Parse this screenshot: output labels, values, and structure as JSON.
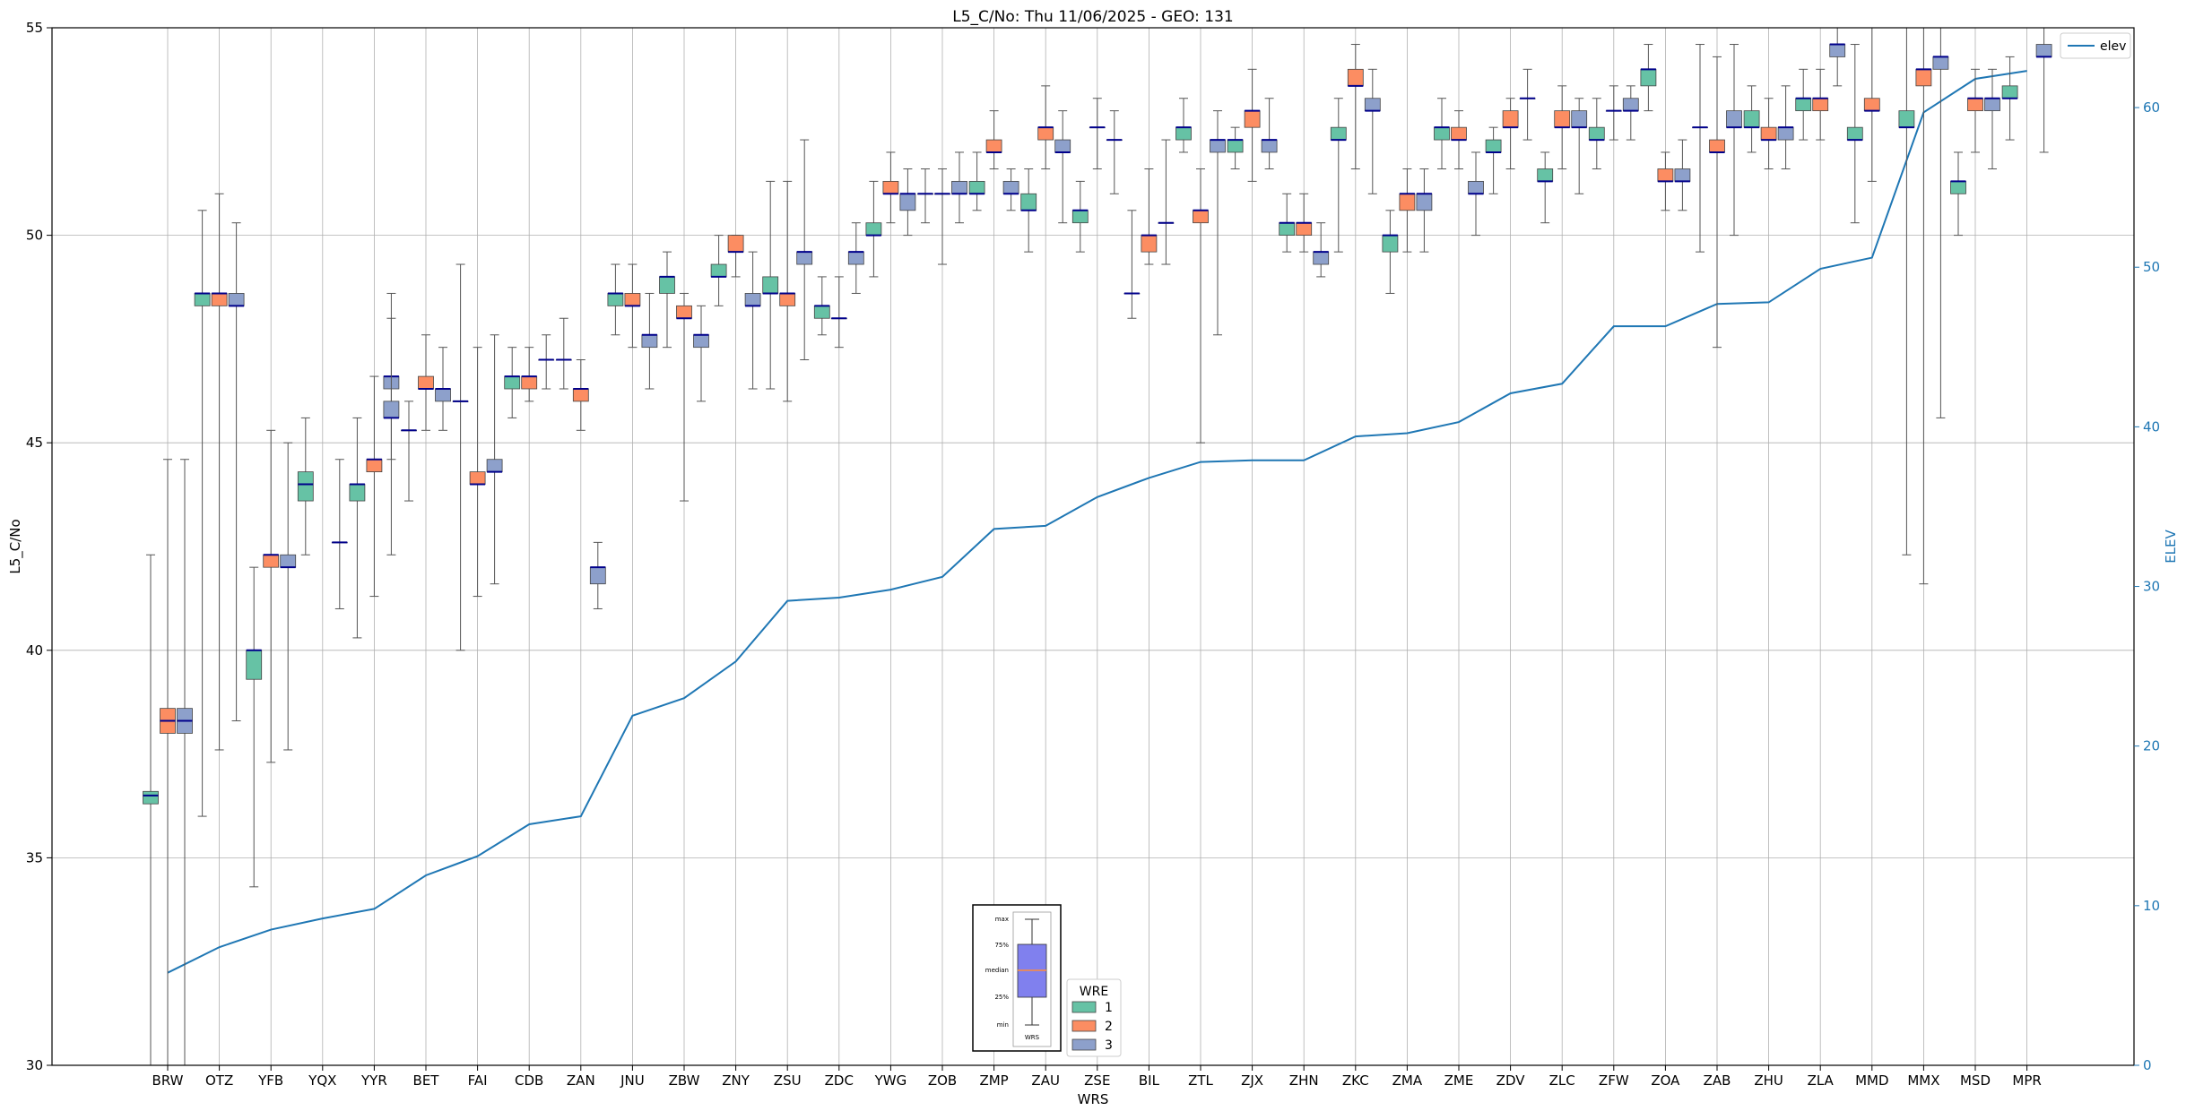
{
  "chart_data": {
    "type": "box",
    "title": "L5_C/No: Thu 11/06/2025 - GEO: 131",
    "xlabel": "WRS",
    "ylabel": "L5_C/No",
    "ylabel_right": "ELEV",
    "ylim": [
      30,
      55
    ],
    "ylim_right": [
      0,
      65
    ],
    "yticks": [
      30,
      35,
      40,
      45,
      50,
      55
    ],
    "yticks_right": [
      0,
      10,
      20,
      30,
      40,
      50,
      60
    ],
    "grid": true,
    "categories": [
      "BRW",
      "OTZ",
      "YFB",
      "YQX",
      "YYR",
      "BET",
      "FAI",
      "CDB",
      "ZAN",
      "JNU",
      "ZBW",
      "ZNY",
      "ZSU",
      "ZDC",
      "YWG",
      "ZOB",
      "ZMP",
      "ZAU",
      "ZSE",
      "BIL",
      "ZTL",
      "ZJX",
      "ZHN",
      "ZKC",
      "ZMA",
      "ZME",
      "ZDV",
      "ZLC",
      "ZFW",
      "ZOA",
      "ZAB",
      "ZHU",
      "ZLA",
      "MMD",
      "MMX",
      "MSD",
      "MPR"
    ],
    "legend": {
      "title": "WRE",
      "entries": [
        "1",
        "2",
        "3"
      ],
      "colors": [
        "#66c2a5",
        "#fc8d62",
        "#8da0cb"
      ],
      "placement": "bottom-center"
    },
    "line_legend": {
      "label": "elev",
      "color": "#1f77b4",
      "placement": "top-right"
    },
    "key_labels": {
      "max": "max",
      "q75": "75%",
      "median": "median",
      "q25": "25%",
      "min": "min",
      "name": "WRS"
    },
    "elev": {
      "name": "elev",
      "values": [
        5.8,
        7.4,
        8.5,
        9.2,
        9.8,
        11.9,
        13.1,
        15.1,
        15.6,
        21.9,
        23.0,
        25.3,
        29.1,
        29.3,
        29.8,
        30.6,
        33.6,
        33.8,
        35.6,
        36.8,
        37.8,
        37.9,
        37.9,
        39.4,
        39.6,
        40.3,
        42.1,
        42.7,
        46.3,
        46.3,
        47.7,
        47.8,
        49.9,
        50.6,
        59.7,
        61.8,
        62.3
      ]
    },
    "boxes": [
      {
        "wrs": "BRW",
        "wre": 1,
        "min": 30,
        "q1": 36.3,
        "med": 36.5,
        "q3": 36.6,
        "max": 42.3
      },
      {
        "wrs": "BRW",
        "wre": 2,
        "min": 30,
        "q1": 38.0,
        "med": 38.3,
        "q3": 38.6,
        "max": 44.6
      },
      {
        "wrs": "BRW",
        "wre": 3,
        "min": 30,
        "q1": 38.0,
        "med": 38.3,
        "q3": 38.6,
        "max": 44.6
      },
      {
        "wrs": "OTZ",
        "wre": 1,
        "min": 36.0,
        "q1": 48.3,
        "med": 48.6,
        "q3": 48.6,
        "max": 50.6
      },
      {
        "wrs": "OTZ",
        "wre": 2,
        "min": 37.6,
        "q1": 48.3,
        "med": 48.6,
        "q3": 48.6,
        "max": 51.0
      },
      {
        "wrs": "OTZ",
        "wre": 3,
        "min": 38.3,
        "q1": 48.3,
        "med": 48.3,
        "q3": 48.6,
        "max": 50.3
      },
      {
        "wrs": "YFB",
        "wre": 1,
        "min": 34.3,
        "q1": 39.3,
        "med": 40.0,
        "q3": 40.0,
        "max": 42.0
      },
      {
        "wrs": "YFB",
        "wre": 2,
        "min": 37.3,
        "q1": 42.0,
        "med": 42.3,
        "q3": 42.3,
        "max": 45.3
      },
      {
        "wrs": "YFB",
        "wre": 3,
        "min": 37.6,
        "q1": 42.0,
        "med": 42.0,
        "q3": 42.3,
        "max": 45.0
      },
      {
        "wrs": "YQX",
        "wre": 1,
        "min": 42.3,
        "q1": 43.6,
        "med": 44.0,
        "q3": 44.3,
        "max": 45.6
      },
      {
        "wrs": "YQX",
        "wre": 2,
        "min": null,
        "q1": null,
        "med": null,
        "q3": null,
        "max": null
      },
      {
        "wrs": "YQX",
        "wre": 3,
        "min": 41.0,
        "q1": 42.6,
        "med": 42.6,
        "q3": 42.6,
        "max": 44.6
      },
      {
        "wrs": "YQX",
        "wre": 3,
        "slot": 4,
        "min": 44.6,
        "q1": 46.3,
        "med": 46.6,
        "q3": 46.6,
        "max": 48.6
      },
      {
        "wrs": "YYR",
        "wre": 1,
        "min": 40.3,
        "q1": 43.6,
        "med": 44.0,
        "q3": 44.0,
        "max": 45.6
      },
      {
        "wrs": "YYR",
        "wre": 2,
        "min": 41.3,
        "q1": 44.3,
        "med": 44.6,
        "q3": 44.6,
        "max": 46.6
      },
      {
        "wrs": "YYR",
        "wre": 3,
        "min": 42.3,
        "q1": 45.6,
        "med": 45.6,
        "q3": 46.0,
        "max": 48.0
      },
      {
        "wrs": "BET",
        "wre": 1,
        "min": 43.6,
        "q1": 45.3,
        "med": 45.3,
        "q3": 45.3,
        "max": 46.0
      },
      {
        "wrs": "BET",
        "wre": 2,
        "min": 45.3,
        "q1": 46.3,
        "med": 46.3,
        "q3": 46.6,
        "max": 47.6
      },
      {
        "wrs": "BET",
        "wre": 3,
        "min": 45.3,
        "q1": 46.0,
        "med": 46.3,
        "q3": 46.3,
        "max": 47.3
      },
      {
        "wrs": "FAI",
        "wre": 1,
        "min": 40.0,
        "q1": 46.0,
        "med": 46.0,
        "q3": 46.0,
        "max": 49.3
      },
      {
        "wrs": "FAI",
        "wre": 2,
        "min": 41.3,
        "q1": 44.0,
        "med": 44.0,
        "q3": 44.3,
        "max": 47.3
      },
      {
        "wrs": "FAI",
        "wre": 3,
        "min": 41.6,
        "q1": 44.3,
        "med": 44.3,
        "q3": 44.6,
        "max": 47.6
      },
      {
        "wrs": "CDB",
        "wre": 1,
        "min": 45.6,
        "q1": 46.3,
        "med": 46.6,
        "q3": 46.6,
        "max": 47.3
      },
      {
        "wrs": "CDB",
        "wre": 2,
        "min": 46.0,
        "q1": 46.3,
        "med": 46.6,
        "q3": 46.6,
        "max": 47.3
      },
      {
        "wrs": "CDB",
        "wre": 3,
        "min": 46.3,
        "q1": 47.0,
        "med": 47.0,
        "q3": 47.0,
        "max": 47.6
      },
      {
        "wrs": "ZAN",
        "wre": 1,
        "min": 46.3,
        "q1": 47.0,
        "med": 47.0,
        "q3": 47.0,
        "max": 48.0
      },
      {
        "wrs": "ZAN",
        "wre": 2,
        "min": 45.3,
        "q1": 46.0,
        "med": 46.3,
        "q3": 46.3,
        "max": 47.0
      },
      {
        "wrs": "ZAN",
        "wre": 3,
        "min": 41.0,
        "q1": 41.6,
        "med": 42.0,
        "q3": 42.0,
        "max": 42.6
      },
      {
        "wrs": "JNU",
        "wre": 1,
        "min": 47.6,
        "q1": 48.3,
        "med": 48.6,
        "q3": 48.6,
        "max": 49.3
      },
      {
        "wrs": "JNU",
        "wre": 2,
        "min": 47.3,
        "q1": 48.3,
        "med": 48.3,
        "q3": 48.6,
        "max": 49.3
      },
      {
        "wrs": "JNU",
        "wre": 3,
        "min": 46.3,
        "q1": 47.3,
        "med": 47.6,
        "q3": 47.6,
        "max": 48.6
      },
      {
        "wrs": "ZBW",
        "wre": 1,
        "min": 47.3,
        "q1": 48.6,
        "med": 49.0,
        "q3": 49.0,
        "max": 49.6
      },
      {
        "wrs": "ZBW",
        "wre": 2,
        "min": 43.6,
        "q1": 48.0,
        "med": 48.0,
        "q3": 48.3,
        "max": 48.6
      },
      {
        "wrs": "ZBW",
        "wre": 3,
        "min": 46.0,
        "q1": 47.3,
        "med": 47.6,
        "q3": 47.6,
        "max": 48.3
      },
      {
        "wrs": "ZNY",
        "wre": 1,
        "min": 48.3,
        "q1": 49.0,
        "med": 49.0,
        "q3": 49.3,
        "max": 50.0
      },
      {
        "wrs": "ZNY",
        "wre": 2,
        "min": 49.0,
        "q1": 49.6,
        "med": 49.6,
        "q3": 50.0,
        "max": 50.0
      },
      {
        "wrs": "ZNY",
        "wre": 3,
        "min": 46.3,
        "q1": 48.3,
        "med": 48.3,
        "q3": 48.6,
        "max": 49.6
      },
      {
        "wrs": "ZSU",
        "wre": 1,
        "min": 46.3,
        "q1": 48.6,
        "med": 48.6,
        "q3": 49.0,
        "max": 51.3
      },
      {
        "wrs": "ZSU",
        "wre": 2,
        "min": 46.0,
        "q1": 48.3,
        "med": 48.6,
        "q3": 48.6,
        "max": 51.3
      },
      {
        "wrs": "ZSU",
        "wre": 3,
        "min": 47.0,
        "q1": 49.3,
        "med": 49.6,
        "q3": 49.6,
        "max": 52.3
      },
      {
        "wrs": "ZDC",
        "wre": 1,
        "min": 47.6,
        "q1": 48.0,
        "med": 48.3,
        "q3": 48.3,
        "max": 49.0
      },
      {
        "wrs": "ZDC",
        "wre": 2,
        "min": 47.3,
        "q1": 48.0,
        "med": 48.0,
        "q3": 48.0,
        "max": 49.0
      },
      {
        "wrs": "ZDC",
        "wre": 3,
        "min": 48.6,
        "q1": 49.3,
        "med": 49.6,
        "q3": 49.6,
        "max": 50.3
      },
      {
        "wrs": "YWG",
        "wre": 1,
        "min": 49.0,
        "q1": 50.0,
        "med": 50.0,
        "q3": 50.3,
        "max": 51.3
      },
      {
        "wrs": "YWG",
        "wre": 2,
        "min": 50.3,
        "q1": 51.0,
        "med": 51.0,
        "q3": 51.3,
        "max": 52.0
      },
      {
        "wrs": "YWG",
        "wre": 3,
        "min": 50.0,
        "q1": 50.6,
        "med": 51.0,
        "q3": 51.0,
        "max": 51.6
      },
      {
        "wrs": "ZOB",
        "wre": 1,
        "min": 50.3,
        "q1": 51.0,
        "med": 51.0,
        "q3": 51.0,
        "max": 51.6
      },
      {
        "wrs": "ZOB",
        "wre": 2,
        "min": 49.3,
        "q1": 51.0,
        "med": 51.0,
        "q3": 51.0,
        "max": 51.6
      },
      {
        "wrs": "ZOB",
        "wre": 3,
        "min": 50.3,
        "q1": 51.0,
        "med": 51.0,
        "q3": 51.3,
        "max": 52.0
      },
      {
        "wrs": "ZMP",
        "wre": 1,
        "min": 50.6,
        "q1": 51.0,
        "med": 51.0,
        "q3": 51.3,
        "max": 52.0
      },
      {
        "wrs": "ZMP",
        "wre": 2,
        "min": 51.6,
        "q1": 52.0,
        "med": 52.0,
        "q3": 52.3,
        "max": 53.0
      },
      {
        "wrs": "ZMP",
        "wre": 3,
        "min": 50.6,
        "q1": 51.0,
        "med": 51.0,
        "q3": 51.3,
        "max": 51.6
      },
      {
        "wrs": "ZAU",
        "wre": 1,
        "min": 49.6,
        "q1": 50.6,
        "med": 50.6,
        "q3": 51.0,
        "max": 51.6
      },
      {
        "wrs": "ZAU",
        "wre": 2,
        "min": 51.6,
        "q1": 52.3,
        "med": 52.6,
        "q3": 52.6,
        "max": 53.6
      },
      {
        "wrs": "ZAU",
        "wre": 3,
        "min": 50.3,
        "q1": 52.0,
        "med": 52.0,
        "q3": 52.3,
        "max": 53.0
      },
      {
        "wrs": "ZSE",
        "wre": 1,
        "min": 49.6,
        "q1": 50.3,
        "med": 50.6,
        "q3": 50.6,
        "max": 51.3
      },
      {
        "wrs": "ZSE",
        "wre": 2,
        "min": 51.6,
        "q1": 52.6,
        "med": 52.6,
        "q3": 52.6,
        "max": 53.3
      },
      {
        "wrs": "ZSE",
        "wre": 3,
        "min": 51.0,
        "q1": 52.3,
        "med": 52.3,
        "q3": 52.3,
        "max": 53.0
      },
      {
        "wrs": "BIL",
        "wre": 1,
        "min": 48.0,
        "q1": 48.6,
        "med": 48.6,
        "q3": 48.6,
        "max": 50.6
      },
      {
        "wrs": "BIL",
        "wre": 2,
        "min": 49.3,
        "q1": 49.6,
        "med": 50.0,
        "q3": 50.0,
        "max": 51.6
      },
      {
        "wrs": "BIL",
        "wre": 3,
        "min": 49.3,
        "q1": 50.3,
        "med": 50.3,
        "q3": 50.3,
        "max": 52.3
      },
      {
        "wrs": "ZTL",
        "wre": 1,
        "min": 52.0,
        "q1": 52.3,
        "med": 52.6,
        "q3": 52.6,
        "max": 53.3
      },
      {
        "wrs": "ZTL",
        "wre": 2,
        "min": 45.0,
        "q1": 50.3,
        "med": 50.6,
        "q3": 50.6,
        "max": 51.6
      },
      {
        "wrs": "ZTL",
        "wre": 3,
        "min": 47.6,
        "q1": 52.0,
        "med": 52.3,
        "q3": 52.3,
        "max": 53.0
      },
      {
        "wrs": "ZJX",
        "wre": 1,
        "min": 51.6,
        "q1": 52.0,
        "med": 52.3,
        "q3": 52.3,
        "max": 52.6
      },
      {
        "wrs": "ZJX",
        "wre": 2,
        "min": 51.3,
        "q1": 52.6,
        "med": 53.0,
        "q3": 53.0,
        "max": 54.0
      },
      {
        "wrs": "ZJX",
        "wre": 3,
        "min": 51.6,
        "q1": 52.0,
        "med": 52.3,
        "q3": 52.3,
        "max": 53.3
      },
      {
        "wrs": "ZHN",
        "wre": 1,
        "min": 49.6,
        "q1": 50.0,
        "med": 50.3,
        "q3": 50.3,
        "max": 51.0
      },
      {
        "wrs": "ZHN",
        "wre": 2,
        "min": 49.6,
        "q1": 50.0,
        "med": 50.3,
        "q3": 50.3,
        "max": 51.0
      },
      {
        "wrs": "ZHN",
        "wre": 3,
        "min": 49.0,
        "q1": 49.3,
        "med": 49.6,
        "q3": 49.6,
        "max": 50.3
      },
      {
        "wrs": "ZKC",
        "wre": 1,
        "min": 49.6,
        "q1": 52.3,
        "med": 52.3,
        "q3": 52.6,
        "max": 53.3
      },
      {
        "wrs": "ZKC",
        "wre": 2,
        "min": 51.6,
        "q1": 53.6,
        "med": 53.6,
        "q3": 54.0,
        "max": 54.6
      },
      {
        "wrs": "ZKC",
        "wre": 3,
        "min": 51.0,
        "q1": 53.0,
        "med": 53.0,
        "q3": 53.3,
        "max": 54.0
      },
      {
        "wrs": "ZMA",
        "wre": 1,
        "min": 48.6,
        "q1": 49.6,
        "med": 50.0,
        "q3": 50.0,
        "max": 50.6
      },
      {
        "wrs": "ZMA",
        "wre": 2,
        "min": 49.6,
        "q1": 50.6,
        "med": 51.0,
        "q3": 51.0,
        "max": 51.6
      },
      {
        "wrs": "ZMA",
        "wre": 3,
        "min": 49.6,
        "q1": 50.6,
        "med": 51.0,
        "q3": 51.0,
        "max": 51.6
      },
      {
        "wrs": "ZME",
        "wre": 1,
        "min": 51.6,
        "q1": 52.3,
        "med": 52.6,
        "q3": 52.6,
        "max": 53.3
      },
      {
        "wrs": "ZME",
        "wre": 2,
        "min": 51.6,
        "q1": 52.3,
        "med": 52.3,
        "q3": 52.6,
        "max": 53.0
      },
      {
        "wrs": "ZME",
        "wre": 3,
        "min": 50.0,
        "q1": 51.0,
        "med": 51.0,
        "q3": 51.3,
        "max": 52.0
      },
      {
        "wrs": "ZDV",
        "wre": 1,
        "min": 51.0,
        "q1": 52.0,
        "med": 52.0,
        "q3": 52.3,
        "max": 52.6
      },
      {
        "wrs": "ZDV",
        "wre": 2,
        "min": 51.6,
        "q1": 52.6,
        "med": 52.6,
        "q3": 53.0,
        "max": 53.3
      },
      {
        "wrs": "ZDV",
        "wre": 3,
        "min": 52.3,
        "q1": 53.3,
        "med": 53.3,
        "q3": 53.3,
        "max": 54.0
      },
      {
        "wrs": "ZLC",
        "wre": 1,
        "min": 50.3,
        "q1": 51.3,
        "med": 51.3,
        "q3": 51.6,
        "max": 52.0
      },
      {
        "wrs": "ZLC",
        "wre": 2,
        "min": 51.6,
        "q1": 52.6,
        "med": 52.6,
        "q3": 53.0,
        "max": 53.6
      },
      {
        "wrs": "ZLC",
        "wre": 3,
        "min": 51.0,
        "q1": 52.6,
        "med": 52.6,
        "q3": 53.0,
        "max": 53.3
      },
      {
        "wrs": "ZFW",
        "wre": 1,
        "min": 51.6,
        "q1": 52.3,
        "med": 52.3,
        "q3": 52.6,
        "max": 53.3
      },
      {
        "wrs": "ZFW",
        "wre": 2,
        "min": 52.3,
        "q1": 53.0,
        "med": 53.0,
        "q3": 53.0,
        "max": 53.6
      },
      {
        "wrs": "ZFW",
        "wre": 3,
        "min": 52.3,
        "q1": 53.0,
        "med": 53.0,
        "q3": 53.3,
        "max": 53.6
      },
      {
        "wrs": "ZOA",
        "wre": 1,
        "min": 53.0,
        "q1": 53.6,
        "med": 54.0,
        "q3": 54.0,
        "max": 54.6
      },
      {
        "wrs": "ZOA",
        "wre": 2,
        "min": 50.6,
        "q1": 51.3,
        "med": 51.3,
        "q3": 51.6,
        "max": 52.0
      },
      {
        "wrs": "ZOA",
        "wre": 3,
        "min": 50.6,
        "q1": 51.3,
        "med": 51.3,
        "q3": 51.6,
        "max": 52.3
      },
      {
        "wrs": "ZAB",
        "wre": 1,
        "min": 49.6,
        "q1": 52.6,
        "med": 52.6,
        "q3": 52.6,
        "max": 54.6
      },
      {
        "wrs": "ZAB",
        "wre": 2,
        "min": 47.3,
        "q1": 52.0,
        "med": 52.0,
        "q3": 52.3,
        "max": 54.3
      },
      {
        "wrs": "ZAB",
        "wre": 3,
        "min": 50.0,
        "q1": 52.6,
        "med": 52.6,
        "q3": 53.0,
        "max": 54.6
      },
      {
        "wrs": "ZHU",
        "wre": 1,
        "min": 52.0,
        "q1": 52.6,
        "med": 52.6,
        "q3": 53.0,
        "max": 53.6
      },
      {
        "wrs": "ZHU",
        "wre": 2,
        "min": 51.6,
        "q1": 52.3,
        "med": 52.3,
        "q3": 52.6,
        "max": 53.3
      },
      {
        "wrs": "ZHU",
        "wre": 3,
        "min": 51.6,
        "q1": 52.3,
        "med": 52.6,
        "q3": 52.6,
        "max": 53.6
      },
      {
        "wrs": "ZLA",
        "wre": 1,
        "min": 52.3,
        "q1": 53.0,
        "med": 53.3,
        "q3": 53.3,
        "max": 54.0
      },
      {
        "wrs": "ZLA",
        "wre": 2,
        "min": 52.3,
        "q1": 53.0,
        "med": 53.3,
        "q3": 53.3,
        "max": 54.0
      },
      {
        "wrs": "ZLA",
        "wre": 3,
        "min": 53.6,
        "q1": 54.3,
        "med": 54.6,
        "q3": 54.6,
        "max": 55.0
      },
      {
        "wrs": "MMD",
        "wre": 1,
        "min": 50.3,
        "q1": 52.3,
        "med": 52.3,
        "q3": 52.6,
        "max": 54.6
      },
      {
        "wrs": "MMD",
        "wre": 2,
        "min": 51.3,
        "q1": 53.0,
        "med": 53.0,
        "q3": 53.3,
        "max": 55.0
      },
      {
        "wrs": "MMD",
        "wre": 3,
        "min": null,
        "q1": null,
        "med": null,
        "q3": null,
        "max": null
      },
      {
        "wrs": "MMX",
        "wre": 1,
        "min": 42.3,
        "q1": 52.6,
        "med": 52.6,
        "q3": 53.0,
        "max": 55.0
      },
      {
        "wrs": "MMX",
        "wre": 2,
        "min": 41.6,
        "q1": 53.6,
        "med": 54.0,
        "q3": 54.0,
        "max": 55.0
      },
      {
        "wrs": "MMX",
        "wre": 3,
        "min": 45.6,
        "q1": 54.0,
        "med": 54.3,
        "q3": 54.3,
        "max": 55.0
      },
      {
        "wrs": "MSD",
        "wre": 1,
        "min": 50.0,
        "q1": 51.0,
        "med": 51.3,
        "q3": 51.3,
        "max": 52.0
      },
      {
        "wrs": "MSD",
        "wre": 2,
        "min": 52.0,
        "q1": 53.0,
        "med": 53.3,
        "q3": 53.3,
        "max": 54.0
      },
      {
        "wrs": "MSD",
        "wre": 3,
        "min": 51.6,
        "q1": 53.0,
        "med": 53.3,
        "q3": 53.3,
        "max": 54.0
      },
      {
        "wrs": "MPR",
        "wre": 1,
        "min": 52.3,
        "q1": 53.3,
        "med": 53.3,
        "q3": 53.6,
        "max": 54.3
      },
      {
        "wrs": "MPR",
        "wre": 2,
        "min": null,
        "q1": null,
        "med": null,
        "q3": null,
        "max": null
      },
      {
        "wrs": "MPR",
        "wre": 3,
        "min": 52.0,
        "q1": 54.3,
        "med": 54.3,
        "q3": 54.6,
        "max": 55.0
      }
    ]
  }
}
